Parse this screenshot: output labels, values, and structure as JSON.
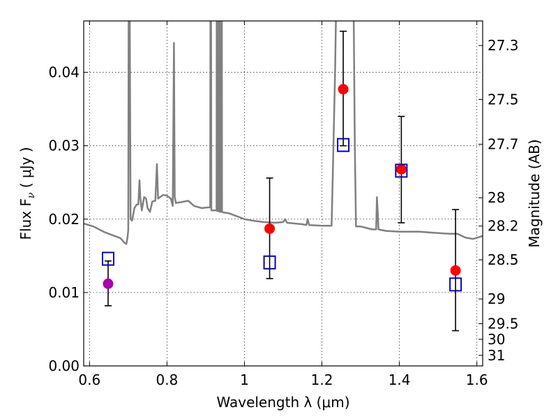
{
  "chart_data": {
    "type": "scatter",
    "title": "",
    "xlabel": "Wavelength  λ (μm)",
    "ylabel": "Flux  F",
    "ylabel_subscript": "ν",
    "ylabel_unit": "  ( μJy )",
    "y2label": "Magnitude (AB)",
    "xlim": [
      0.585,
      1.615
    ],
    "ylim": [
      0.0,
      0.047
    ],
    "xticks": [
      0.6,
      0.8,
      1.0,
      1.2,
      1.4,
      1.6
    ],
    "xtick_labels": [
      "0.6",
      "0.8",
      "1",
      "1.2",
      "1.4",
      "1.6"
    ],
    "yticks": [
      0.0,
      0.01,
      0.02,
      0.03,
      0.04
    ],
    "ytick_labels": [
      "0.00",
      "0.01",
      "0.02",
      "0.03",
      "0.04"
    ],
    "y2ticks": [
      27.3,
      27.5,
      27.7,
      28.0,
      28.2,
      28.5,
      29.0,
      29.5,
      30.0,
      31.0
    ],
    "y2tick_labels": [
      "27.3",
      "27.5",
      "27.7",
      "28",
      "28.2",
      "28.5",
      "29",
      "29.5",
      "30",
      "31"
    ],
    "grid": true,
    "series": [
      {
        "marker": "line",
        "color": "#808080",
        "points": [
          [
            0.585,
            0.0194
          ],
          [
            0.61,
            0.019
          ],
          [
            0.64,
            0.0182
          ],
          [
            0.66,
            0.0178
          ],
          [
            0.68,
            0.0174
          ],
          [
            0.69,
            0.0168
          ],
          [
            0.695,
            0.0166
          ],
          [
            0.698,
            0.0175
          ],
          [
            0.7,
            0.0185
          ],
          [
            0.7015,
            0.06
          ],
          [
            0.703,
            0.06
          ],
          [
            0.706,
            0.02
          ],
          [
            0.71,
            0.0198
          ],
          [
            0.716,
            0.0215
          ],
          [
            0.722,
            0.022
          ],
          [
            0.726,
            0.022
          ],
          [
            0.729,
            0.0253
          ],
          [
            0.731,
            0.023
          ],
          [
            0.735,
            0.0212
          ],
          [
            0.741,
            0.023
          ],
          [
            0.746,
            0.0228
          ],
          [
            0.75,
            0.0215
          ],
          [
            0.756,
            0.021
          ],
          [
            0.762,
            0.0224
          ],
          [
            0.77,
            0.0225
          ],
          [
            0.774,
            0.0275
          ],
          [
            0.777,
            0.0228
          ],
          [
            0.79,
            0.0233
          ],
          [
            0.8,
            0.0232
          ],
          [
            0.81,
            0.0228
          ],
          [
            0.815,
            0.0218
          ],
          [
            0.818,
            0.044
          ],
          [
            0.82,
            0.023
          ],
          [
            0.823,
            0.0222
          ],
          [
            0.835,
            0.0223
          ],
          [
            0.855,
            0.0225
          ],
          [
            0.87,
            0.0218
          ],
          [
            0.89,
            0.0215
          ],
          [
            0.905,
            0.0216
          ],
          [
            0.9115,
            0.0216
          ],
          [
            0.9125,
            0.06
          ],
          [
            0.9135,
            0.06
          ],
          [
            0.9145,
            0.0212
          ],
          [
            0.925,
            0.0212
          ],
          [
            0.928,
            0.0212
          ],
          [
            0.9285,
            0.06
          ],
          [
            0.9295,
            0.06
          ],
          [
            0.93,
            0.0211
          ],
          [
            0.934,
            0.0211
          ],
          [
            0.9345,
            0.06
          ],
          [
            0.9355,
            0.06
          ],
          [
            0.936,
            0.021
          ],
          [
            0.94,
            0.021
          ],
          [
            0.9405,
            0.06
          ],
          [
            0.9415,
            0.06
          ],
          [
            0.942,
            0.021
          ],
          [
            0.946,
            0.0209
          ],
          [
            0.96,
            0.0208
          ],
          [
            0.98,
            0.0204
          ],
          [
            1.0,
            0.02
          ],
          [
            1.02,
            0.0198
          ],
          [
            1.05,
            0.0196
          ],
          [
            1.08,
            0.0195
          ],
          [
            1.1,
            0.0196
          ],
          [
            1.105,
            0.02
          ],
          [
            1.11,
            0.0195
          ],
          [
            1.15,
            0.0193
          ],
          [
            1.16,
            0.0192
          ],
          [
            1.163,
            0.02
          ],
          [
            1.167,
            0.0192
          ],
          [
            1.2,
            0.0191
          ],
          [
            1.225,
            0.0191
          ],
          [
            1.228,
            0.026
          ],
          [
            1.234,
            0.04
          ],
          [
            1.24,
            0.06
          ],
          [
            1.28,
            0.06
          ],
          [
            1.285,
            0.03
          ],
          [
            1.288,
            0.019
          ],
          [
            1.3,
            0.019
          ],
          [
            1.33,
            0.0186
          ],
          [
            1.34,
            0.0186
          ],
          [
            1.342,
            0.023
          ],
          [
            1.344,
            0.021
          ],
          [
            1.346,
            0.0186
          ],
          [
            1.365,
            0.0184
          ],
          [
            1.4,
            0.0183
          ],
          [
            1.45,
            0.0183
          ],
          [
            1.5,
            0.0181
          ],
          [
            1.53,
            0.018
          ],
          [
            1.55,
            0.018
          ],
          [
            1.57,
            0.0175
          ],
          [
            1.59,
            0.0173
          ],
          [
            1.615,
            0.0177
          ]
        ]
      },
      {
        "marker": "circle",
        "color": "#ff0000",
        "points": [
          {
            "x": 1.065,
            "y": 0.0187,
            "yerr_low": 0.0119,
            "yerr_high": 0.0256
          },
          {
            "x": 1.255,
            "y": 0.0377,
            "yerr_low": 0.03,
            "yerr_high": 0.0456
          },
          {
            "x": 1.405,
            "y": 0.0268,
            "yerr_low": 0.0195,
            "yerr_high": 0.034
          },
          {
            "x": 1.545,
            "y": 0.013,
            "yerr_low": 0.0048,
            "yerr_high": 0.0213
          }
        ]
      },
      {
        "marker": "circle",
        "color": "#aa00aa",
        "points": [
          {
            "x": 0.648,
            "y": 0.0112,
            "yerr_low": 0.0082,
            "yerr_high": 0.0143
          }
        ]
      },
      {
        "marker": "square",
        "color": "#0000cc",
        "points": [
          {
            "x": 0.648,
            "y": 0.0146
          },
          {
            "x": 1.065,
            "y": 0.0141
          },
          {
            "x": 1.255,
            "y": 0.0301
          },
          {
            "x": 1.405,
            "y": 0.0266
          },
          {
            "x": 1.545,
            "y": 0.0111
          }
        ]
      }
    ]
  }
}
